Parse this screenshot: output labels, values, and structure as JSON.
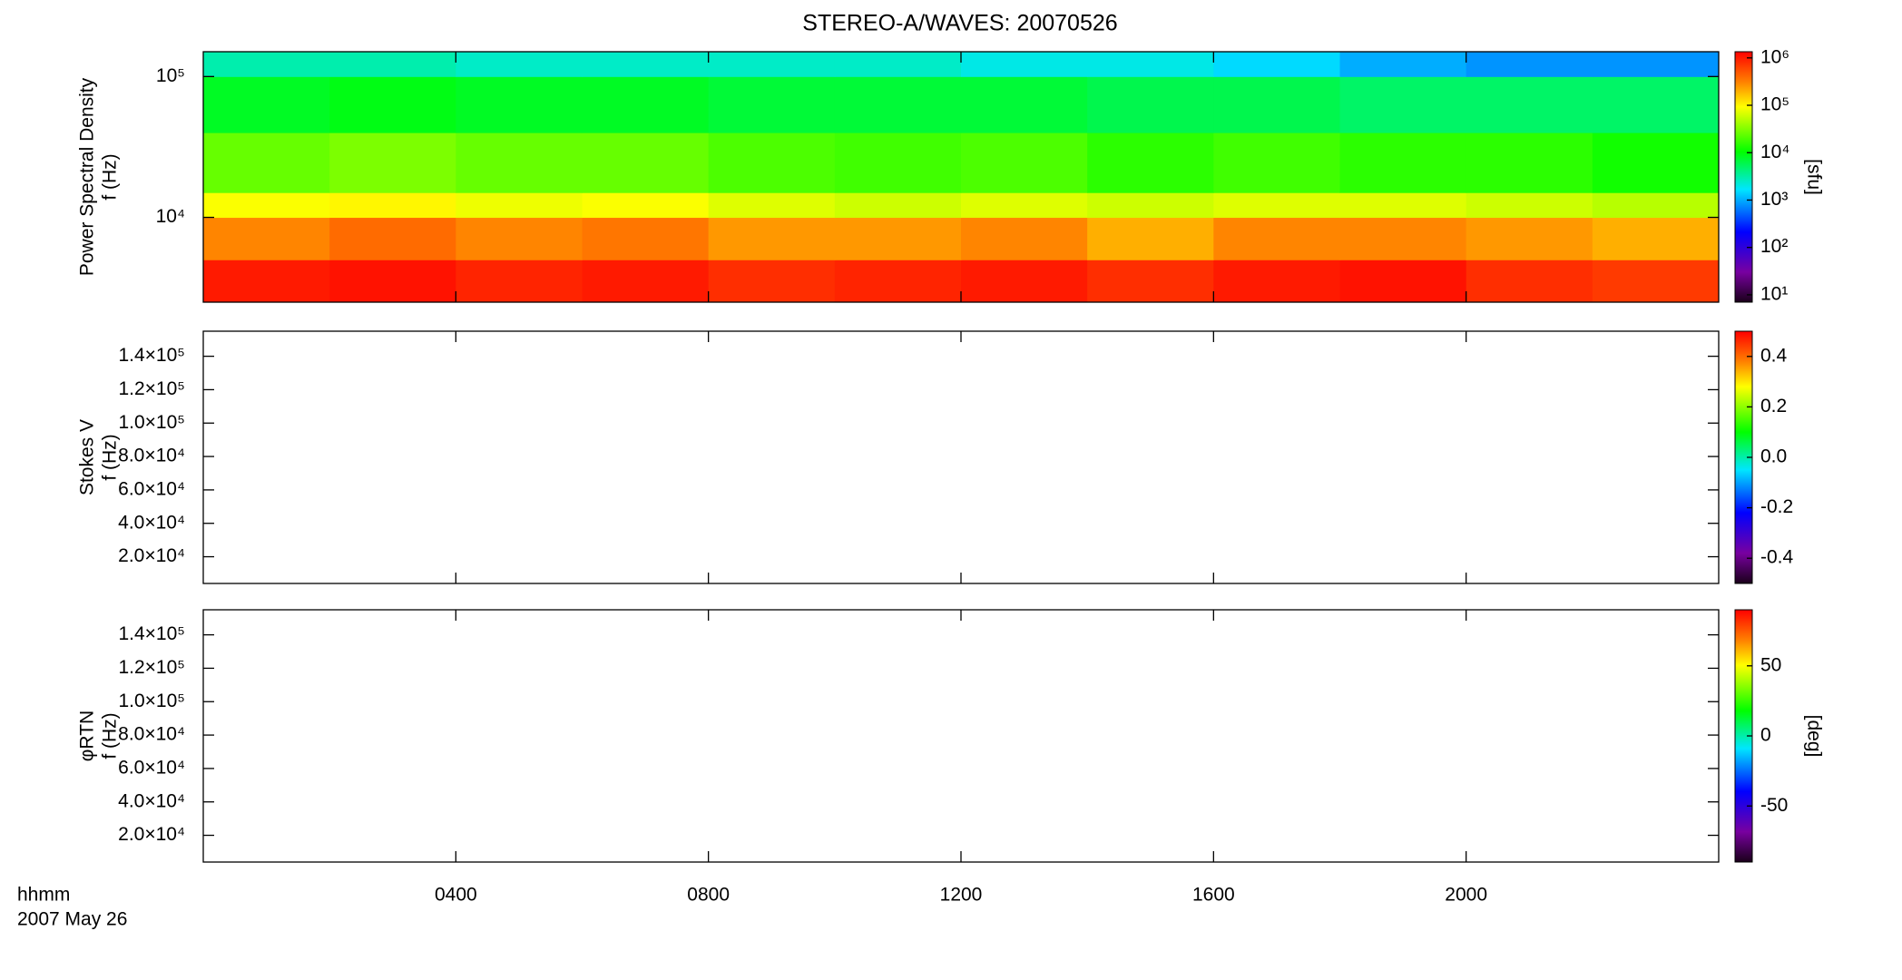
{
  "chart_data": [
    {
      "type": "heatmap",
      "title": "STEREO-A/WAVES: 20070526",
      "ylabel": [
        "Power Spectral Density",
        "f (Hz)"
      ],
      "xlim": [
        0,
        24
      ],
      "xticks": [
        4,
        8,
        12,
        16,
        20
      ],
      "ylim": [
        2500,
        150000
      ],
      "ylog": true,
      "yticks": [
        {
          "value": 10000,
          "label": "10⁴"
        },
        {
          "value": 100000,
          "label": "10⁵"
        }
      ],
      "x_edges": [
        0,
        2,
        4,
        6,
        8,
        10,
        12,
        14,
        16,
        18,
        20,
        22,
        24
      ],
      "y_edges": [
        2500,
        5000,
        10000,
        15000,
        40000,
        100000,
        150000
      ],
      "z": [
        [
          1000000,
          1100000,
          900000,
          1000000,
          800000,
          900000,
          1000000,
          800000,
          1000000,
          1100000,
          800000,
          700000
        ],
        [
          300000,
          400000,
          300000,
          350000,
          250000,
          250000,
          300000,
          200000,
          300000,
          300000,
          250000,
          200000
        ],
        [
          90000,
          100000,
          80000,
          90000,
          70000,
          60000,
          70000,
          60000,
          70000,
          70000,
          60000,
          50000
        ],
        [
          25000,
          30000,
          25000,
          25000,
          20000,
          18000,
          20000,
          15000,
          18000,
          15000,
          15000,
          12000
        ],
        [
          8000,
          9000,
          8000,
          8000,
          7000,
          7000,
          7000,
          6000,
          6000,
          5000,
          5000,
          5000
        ],
        [
          3000,
          3000,
          2500,
          2500,
          2500,
          2500,
          2000,
          2000,
          1500,
          1000,
          800,
          800
        ]
      ],
      "zlim": [
        7,
        1350000
      ],
      "zlog": true,
      "zticks": [
        {
          "value": 10,
          "label": "10¹"
        },
        {
          "value": 100,
          "label": "10²"
        },
        {
          "value": 1000,
          "label": "10³"
        },
        {
          "value": 10000,
          "label": "10⁴"
        },
        {
          "value": 100000,
          "label": "10⁵"
        },
        {
          "value": 1000000,
          "label": "10⁶"
        }
      ],
      "zlabel": "[sfu]"
    },
    {
      "type": "heatmap",
      "ylabel": [
        "Stokes V",
        "f (Hz)"
      ],
      "xlim": [
        0,
        24
      ],
      "xticks": [
        4,
        8,
        12,
        16,
        20
      ],
      "ylim": [
        4000,
        155000
      ],
      "yticks": [
        {
          "value": 20000,
          "label": "2.0×10⁴"
        },
        {
          "value": 40000,
          "label": "4.0×10⁴"
        },
        {
          "value": 60000,
          "label": "6.0×10⁴"
        },
        {
          "value": 80000,
          "label": "8.0×10⁴"
        },
        {
          "value": 100000,
          "label": "1.0×10⁵"
        },
        {
          "value": 120000,
          "label": "1.2×10⁵"
        },
        {
          "value": 140000,
          "label": "1.4×10⁵"
        }
      ],
      "zlim": [
        -0.5,
        0.5
      ],
      "zticks": [
        {
          "value": -0.4,
          "label": "-0.4"
        },
        {
          "value": -0.2,
          "label": "-0.2"
        },
        {
          "value": 0,
          "label": "0.0"
        },
        {
          "value": 0.2,
          "label": "0.2"
        },
        {
          "value": 0.4,
          "label": "0.4"
        }
      ]
    },
    {
      "type": "heatmap",
      "ylabel": [
        "φRTN",
        "f (Hz)"
      ],
      "xlim": [
        0,
        24
      ],
      "xticks": [
        {
          "value": 4,
          "label": "0400"
        },
        {
          "value": 8,
          "label": "0800"
        },
        {
          "value": 12,
          "label": "1200"
        },
        {
          "value": 16,
          "label": "1600"
        },
        {
          "value": 20,
          "label": "2000"
        }
      ],
      "x_label": "hhmm",
      "date_label": "2007 May 26",
      "ylim": [
        4000,
        155000
      ],
      "yticks": [
        {
          "value": 20000,
          "label": "2.0×10⁴"
        },
        {
          "value": 40000,
          "label": "4.0×10⁴"
        },
        {
          "value": 60000,
          "label": "6.0×10⁴"
        },
        {
          "value": 80000,
          "label": "8.0×10⁴"
        },
        {
          "value": 100000,
          "label": "1.0×10⁵"
        },
        {
          "value": 120000,
          "label": "1.2×10⁵"
        },
        {
          "value": 140000,
          "label": "1.4×10⁵"
        }
      ],
      "zlim": [
        -90,
        90
      ],
      "zticks": [
        -50,
        0,
        50
      ],
      "zlabel": "[deg]"
    }
  ]
}
